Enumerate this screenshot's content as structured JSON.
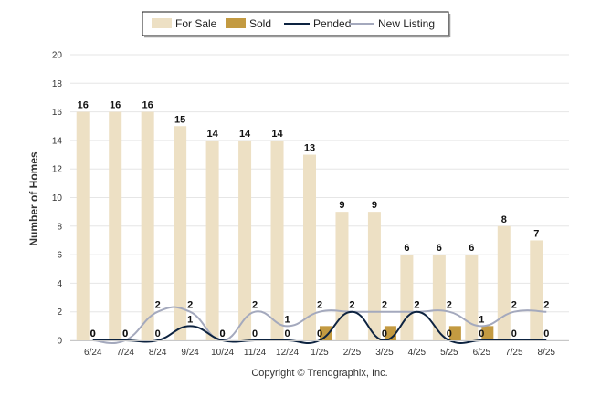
{
  "chart_data": {
    "type": "bar",
    "ylabel": "Number of Homes",
    "ylim": [
      0,
      20
    ],
    "yticks": [
      0,
      2,
      4,
      6,
      8,
      10,
      12,
      14,
      16,
      18,
      20
    ],
    "grid": true,
    "legend_placement": "top-center",
    "categories": [
      "6/24",
      "7/24",
      "8/24",
      "9/24",
      "10/24",
      "11/24",
      "12/24",
      "1/25",
      "2/25",
      "3/25",
      "4/25",
      "5/25",
      "6/25",
      "7/25",
      "8/25"
    ],
    "series": [
      {
        "name": "For Sale",
        "kind": "bar",
        "color": "#ede0c4",
        "values": [
          16,
          16,
          16,
          15,
          14,
          14,
          14,
          13,
          9,
          9,
          6,
          6,
          6,
          8,
          7
        ]
      },
      {
        "name": "Sold",
        "kind": "bar",
        "color": "#c39a41",
        "values": [
          0,
          0,
          0,
          0,
          0,
          0,
          0,
          1,
          0,
          1,
          0,
          1,
          1,
          0,
          0
        ]
      },
      {
        "name": "Pended",
        "kind": "line",
        "color": "#0d2340",
        "values": [
          0,
          0,
          0,
          1,
          0,
          0,
          0,
          0,
          2,
          0,
          2,
          0,
          0,
          0,
          0
        ]
      },
      {
        "name": "New Listing",
        "kind": "line",
        "color": "#a4a9bd",
        "values": [
          0,
          0,
          2,
          2,
          0,
          2,
          1,
          2,
          2,
          2,
          2,
          2,
          1,
          2,
          2
        ]
      }
    ]
  },
  "copyright": "Copyright © Trendgraphix, Inc."
}
